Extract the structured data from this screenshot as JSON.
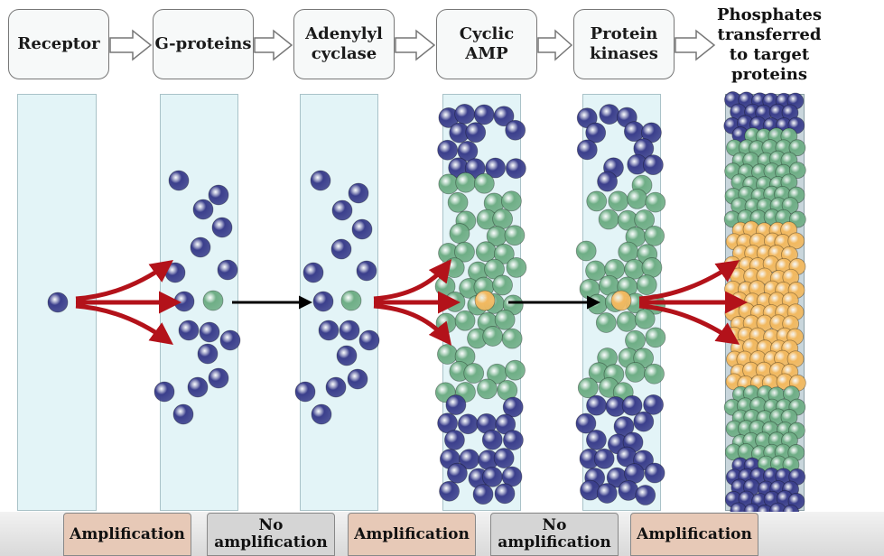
{
  "stages": [
    {
      "label": "Receptor"
    },
    {
      "label": "G-proteins"
    },
    {
      "label": "Adenylyl\ncyclase"
    },
    {
      "label": "Cyclic\nAMP"
    },
    {
      "label": "Protein\nkinases"
    }
  ],
  "final_stage": {
    "label": "Phosphates\ntransferred\nto target\nproteins"
  },
  "footer": [
    {
      "label": "Amplification",
      "type": "amplification"
    },
    {
      "label": "No\namplification",
      "type": "no-amplification"
    },
    {
      "label": "Amplification",
      "type": "amplification"
    },
    {
      "label": "No\namplification",
      "type": "no-amplification"
    },
    {
      "label": "Amplification",
      "type": "amplification"
    }
  ],
  "colors": {
    "g_protein_ball": "#3b3f8c",
    "adenylyl_ball": "#6fae86",
    "camp_ball": "#f2b960",
    "amplification_arrow": "#b3121a",
    "transfer_arrow": "#000000",
    "amplification_box": "#e7c9b7",
    "no_amplification_box": "#d5d5d5",
    "column_fill": "#e3f4f7"
  }
}
